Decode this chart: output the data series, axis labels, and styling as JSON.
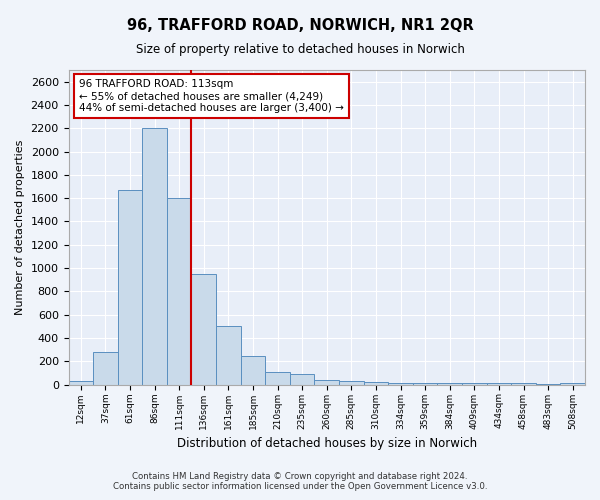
{
  "title": "96, TRAFFORD ROAD, NORWICH, NR1 2QR",
  "subtitle": "Size of property relative to detached houses in Norwich",
  "xlabel": "Distribution of detached houses by size in Norwich",
  "ylabel": "Number of detached properties",
  "footer_line1": "Contains HM Land Registry data © Crown copyright and database right 2024.",
  "footer_line2": "Contains public sector information licensed under the Open Government Licence v3.0.",
  "annotation_line1": "96 TRAFFORD ROAD: 113sqm",
  "annotation_line2": "← 55% of detached houses are smaller (4,249)",
  "annotation_line3": "44% of semi-detached houses are larger (3,400) →",
  "categories": [
    "12sqm",
    "37sqm",
    "61sqm",
    "86sqm",
    "111sqm",
    "136sqm",
    "161sqm",
    "185sqm",
    "210sqm",
    "235sqm",
    "260sqm",
    "285sqm",
    "310sqm",
    "334sqm",
    "359sqm",
    "384sqm",
    "409sqm",
    "434sqm",
    "458sqm",
    "483sqm",
    "508sqm"
  ],
  "values": [
    30,
    280,
    1670,
    2200,
    1600,
    950,
    500,
    250,
    110,
    90,
    40,
    35,
    20,
    15,
    10,
    10,
    15,
    10,
    10,
    5,
    10
  ],
  "bar_color": "#c9daea",
  "bar_edge_color": "#5a8fc0",
  "highlight_index": 4,
  "red_line_color": "#cc0000",
  "ylim": [
    0,
    2700
  ],
  "yticks": [
    0,
    200,
    400,
    600,
    800,
    1000,
    1200,
    1400,
    1600,
    1800,
    2000,
    2200,
    2400,
    2600
  ],
  "annotation_box_color": "white",
  "annotation_box_edge_color": "#cc0000",
  "background_color": "#f0f4fa",
  "plot_bg_color": "#e8eef8"
}
